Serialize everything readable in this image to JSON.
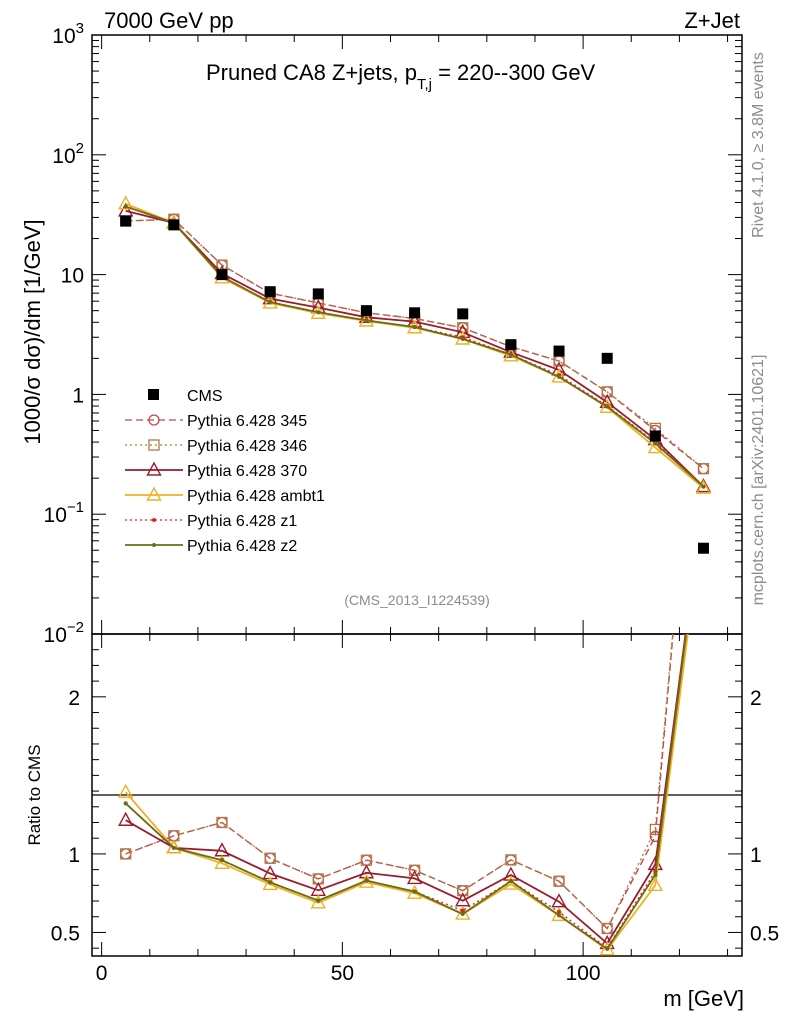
{
  "header": {
    "left": "7000 GeV pp",
    "right": "Z+Jet"
  },
  "side_text": {
    "rivet": "Rivet 4.1.0, ≥ 3.8M events",
    "mcplots": "mcplots.cern.ch [arXiv:2401.10621]"
  },
  "chart_data": {
    "type": "line",
    "title": "Pruned CA8 Z+jets, p_{T,j} = 220--300 GeV",
    "title_main": "Pruned CA8 Z+jets, p",
    "title_sub": "T,j",
    "title_tail": " = 220--300 GeV",
    "source_label": "(CMS_2013_I1224539)",
    "xlabel": "m [GeV]",
    "ylabel_main": "1000/σ   dσ)/dm [1/GeV]",
    "ylabel_ratio": "Ratio to CMS",
    "xlim": [
      -2,
      133
    ],
    "ylim": [
      0.01,
      1000
    ],
    "yscale": "log",
    "ratio_ylim": [
      0.35,
      2.4
    ],
    "x_ticks": [
      "0",
      "50",
      "100"
    ],
    "y_ticks_main": [
      {
        "base": "10",
        "exp": "3",
        "value": 1000
      },
      {
        "base": "10",
        "exp": "2",
        "value": 100
      },
      {
        "base": "10",
        "exp": "",
        "value": 10
      },
      {
        "base": "1",
        "exp": "",
        "value": 1
      },
      {
        "base": "10",
        "exp": "−1",
        "value": 0.1
      },
      {
        "base": "10",
        "exp": "−2",
        "value": 0.01
      }
    ],
    "y_ticks_ratio": [
      "2",
      "1",
      "0.5"
    ],
    "x": [
      5,
      15,
      25,
      35,
      45,
      55,
      65,
      75,
      85,
      95,
      105,
      115,
      125
    ],
    "data": {
      "name": "CMS",
      "values": [
        28,
        26,
        10,
        7.2,
        6.9,
        5.0,
        4.8,
        4.7,
        2.6,
        2.3,
        2.0,
        0.45,
        0.052
      ]
    },
    "series": [
      {
        "name": "Pythia 6.428 345",
        "color": "#c04a4a",
        "dash": "7,4",
        "marker": "circle",
        "values": [
          28,
          29,
          12,
          7.0,
          5.8,
          4.8,
          4.3,
          3.6,
          2.5,
          1.9,
          1.05,
          0.5,
          0.24
        ]
      },
      {
        "name": "Pythia 6.428 346",
        "color": "#b07a45",
        "dash": "2,3",
        "marker": "square",
        "values": [
          28,
          29,
          12,
          7.0,
          5.8,
          4.8,
          4.3,
          3.6,
          2.5,
          1.9,
          1.05,
          0.52,
          0.24
        ]
      },
      {
        "name": "Pythia 6.428 370",
        "color": "#9b1b2a",
        "dash": "",
        "marker": "triangle",
        "values": [
          34,
          27,
          10.2,
          6.3,
          5.3,
          4.4,
          4.05,
          3.3,
          2.25,
          1.6,
          0.86,
          0.42,
          0.17
        ]
      },
      {
        "name": "Pythia 6.428 ambt1",
        "color": "#f0b020",
        "dash": "",
        "marker": "triangle",
        "values": [
          39,
          27,
          9.4,
          5.8,
          4.75,
          4.1,
          3.6,
          2.9,
          2.1,
          1.4,
          0.78,
          0.36,
          0.165
        ]
      },
      {
        "name": "Pythia 6.428 z1",
        "color": "#d42a1a",
        "dash": "2,3",
        "marker": "dot",
        "values": [
          37,
          27,
          9.6,
          5.9,
          4.85,
          4.15,
          3.65,
          3.0,
          2.15,
          1.45,
          0.8,
          0.4,
          0.17
        ]
      },
      {
        "name": "Pythia 6.428 z2",
        "color": "#6b6b18",
        "dash": "",
        "marker": "smalldot",
        "values": [
          37,
          27,
          9.6,
          5.9,
          4.85,
          4.15,
          3.65,
          2.9,
          2.15,
          1.4,
          0.79,
          0.39,
          0.17
        ]
      }
    ]
  }
}
